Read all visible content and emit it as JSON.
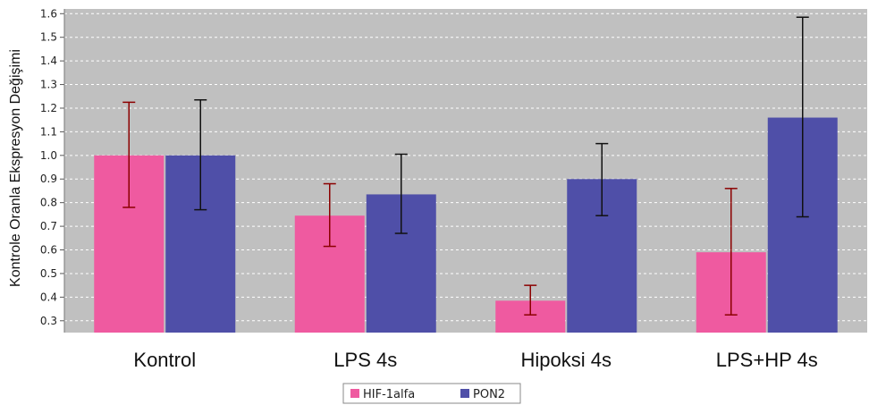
{
  "chart_data": {
    "type": "bar",
    "title": "",
    "xlabel": "",
    "ylabel": "Kontrole Oranla Ekspresyon Değişimi",
    "ylim": [
      0.25,
      1.62
    ],
    "yticks": [
      0.3,
      0.4,
      0.5,
      0.6,
      0.7,
      0.8,
      0.9,
      1.0,
      1.1,
      1.2,
      1.3,
      1.4,
      1.5,
      1.6
    ],
    "ytick_labels": [
      "0.3",
      "0.4",
      "0.5",
      "0.6",
      "0.7",
      "0.8",
      "0.9",
      "1.0",
      "1.1",
      "1.2",
      "1.3",
      "1.4",
      "1.5",
      "1.6"
    ],
    "grid": true,
    "legend_position": "bottom-center",
    "categories": [
      "Kontrol",
      "LPS 4s",
      "Hipoksi 4s",
      "LPS+HP 4s"
    ],
    "series": [
      {
        "name": "HIF-1alfa",
        "color": "#ef5aa0",
        "error_color": "#8b0000",
        "values": [
          1.0,
          0.745,
          0.385,
          0.59
        ],
        "error_low": [
          0.78,
          0.615,
          0.325,
          0.325
        ],
        "error_high": [
          1.225,
          0.88,
          0.45,
          0.86
        ]
      },
      {
        "name": "PON2",
        "color": "#4f4fa8",
        "error_color": "#111111",
        "values": [
          1.0,
          0.835,
          0.9,
          1.16
        ],
        "error_low": [
          0.77,
          0.67,
          0.745,
          0.74
        ],
        "error_high": [
          1.235,
          1.005,
          1.05,
          1.585
        ]
      }
    ]
  }
}
